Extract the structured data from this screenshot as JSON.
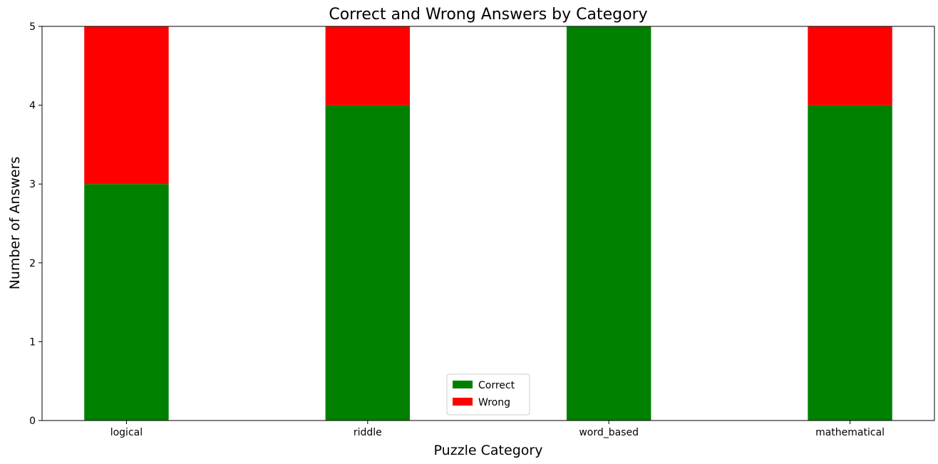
{
  "chart_data": {
    "type": "bar",
    "stacked": true,
    "title": "Correct and Wrong Answers by Category",
    "xlabel": "Puzzle Category",
    "ylabel": "Number of Answers",
    "categories": [
      "logical",
      "riddle",
      "word_based",
      "mathematical"
    ],
    "series": [
      {
        "name": "Correct",
        "values": [
          3,
          4,
          5,
          4
        ],
        "color": "#008000"
      },
      {
        "name": "Wrong",
        "values": [
          2,
          1,
          0,
          1
        ],
        "color": "#ff0000"
      }
    ],
    "ylim": [
      0,
      5
    ],
    "yticks": [
      0,
      1,
      2,
      3,
      4,
      5
    ],
    "grid": false,
    "legend_position": "bottom-center"
  }
}
